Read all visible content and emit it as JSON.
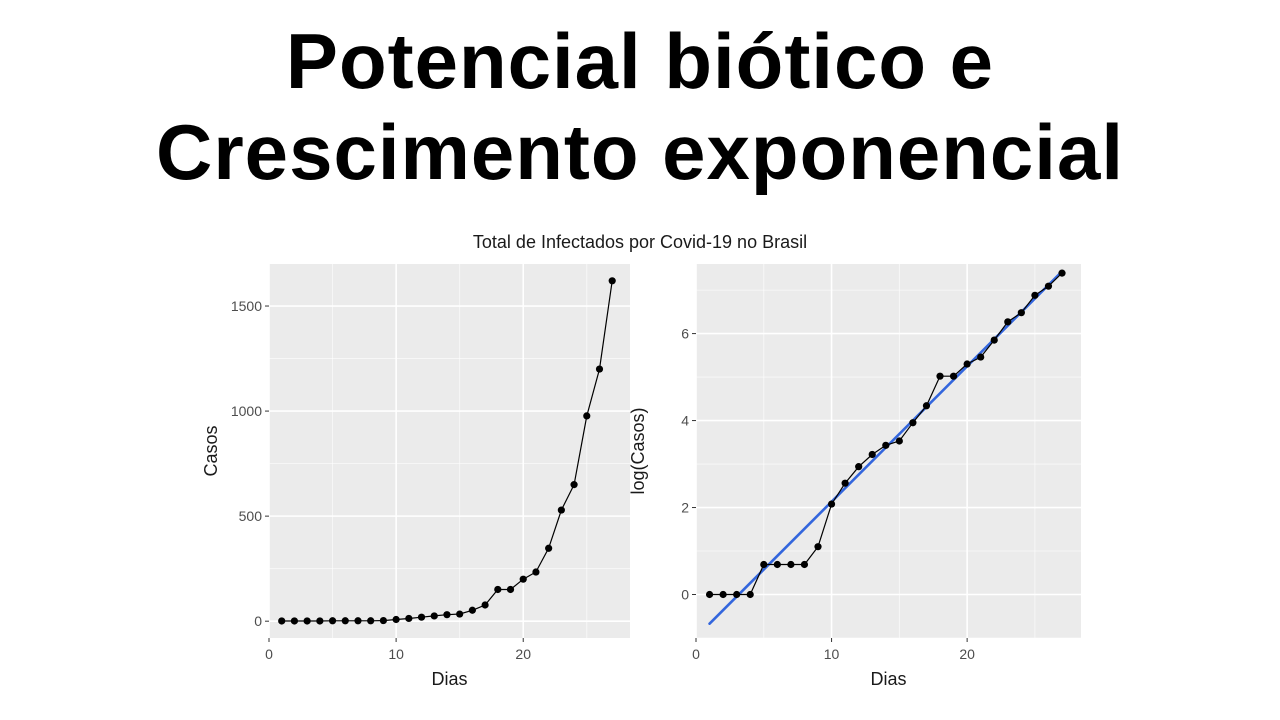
{
  "headline": {
    "line1": "Potencial biótico e",
    "line2": "Crescimento exponencial"
  },
  "figure_title": "Total de Infectados por Covid-19 no Brasil",
  "colors": {
    "panel_background": "#ebebeb",
    "grid": "#ffffff",
    "points": "#000000",
    "trend_line": "#3366dd"
  },
  "chart_data": [
    {
      "type": "line",
      "title": "",
      "xlabel": "Dias",
      "ylabel": "Casos",
      "xlim": [
        0,
        28.4
      ],
      "ylim": [
        -80,
        1700
      ],
      "xticks": [
        0,
        10,
        20
      ],
      "yticks": [
        0,
        500,
        1000,
        1500
      ],
      "grid": true,
      "series": [
        {
          "x": [
            1,
            2,
            3,
            4,
            5,
            6,
            7,
            8,
            9,
            10,
            11,
            12,
            13,
            14,
            15,
            16,
            17,
            18,
            19,
            20,
            21,
            22,
            23,
            24,
            25,
            26,
            27
          ],
          "y": [
            1,
            1,
            1,
            1,
            2,
            2,
            2,
            2,
            3,
            8,
            13,
            19,
            25,
            31,
            34,
            52,
            77,
            151,
            151,
            200,
            234,
            347,
            529,
            650,
            977,
            1200,
            1620
          ]
        }
      ]
    },
    {
      "type": "line",
      "title": "",
      "xlabel": "Dias",
      "ylabel": "log(Casos)",
      "xlim": [
        0,
        28.4
      ],
      "ylim": [
        -1,
        7.6
      ],
      "xticks": [
        0,
        10,
        20
      ],
      "yticks": [
        0,
        2,
        4,
        6
      ],
      "grid": true,
      "series": [
        {
          "x": [
            1,
            2,
            3,
            4,
            5,
            6,
            7,
            8,
            9,
            10,
            11,
            12,
            13,
            14,
            15,
            16,
            17,
            18,
            19,
            20,
            21,
            22,
            23,
            24,
            25,
            26,
            27
          ],
          "y": [
            0,
            0,
            0,
            0,
            0.69,
            0.69,
            0.69,
            0.69,
            1.1,
            2.08,
            2.56,
            2.94,
            3.22,
            3.43,
            3.53,
            3.95,
            4.34,
            5.02,
            5.02,
            5.3,
            5.46,
            5.85,
            6.27,
            6.48,
            6.88,
            7.09,
            7.39
          ]
        }
      ],
      "trend_line": {
        "x": [
          1,
          27
        ],
        "y": [
          -0.67,
          7.43
        ]
      }
    }
  ]
}
